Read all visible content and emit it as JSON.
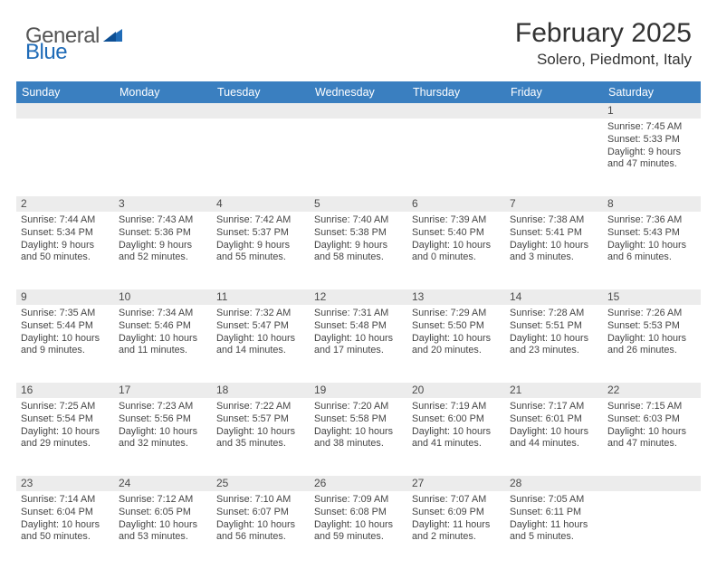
{
  "logo": {
    "text1": "General",
    "text2": "Blue"
  },
  "title": "February 2025",
  "location": "Solero, Piedmont, Italy",
  "colors": {
    "header_bg": "#3a7fc0",
    "header_text": "#ffffff",
    "daynum_bg": "#ececec",
    "body_text": "#454545",
    "logo_gray": "#555555",
    "logo_blue": "#1f6bb7"
  },
  "dow": [
    "Sunday",
    "Monday",
    "Tuesday",
    "Wednesday",
    "Thursday",
    "Friday",
    "Saturday"
  ],
  "weeks": [
    {
      "nums": [
        "",
        "",
        "",
        "",
        "",
        "",
        "1"
      ],
      "cells": [
        null,
        null,
        null,
        null,
        null,
        null,
        {
          "sr": "Sunrise: 7:45 AM",
          "ss": "Sunset: 5:33 PM",
          "d1": "Daylight: 9 hours",
          "d2": "and 47 minutes."
        }
      ]
    },
    {
      "nums": [
        "2",
        "3",
        "4",
        "5",
        "6",
        "7",
        "8"
      ],
      "cells": [
        {
          "sr": "Sunrise: 7:44 AM",
          "ss": "Sunset: 5:34 PM",
          "d1": "Daylight: 9 hours",
          "d2": "and 50 minutes."
        },
        {
          "sr": "Sunrise: 7:43 AM",
          "ss": "Sunset: 5:36 PM",
          "d1": "Daylight: 9 hours",
          "d2": "and 52 minutes."
        },
        {
          "sr": "Sunrise: 7:42 AM",
          "ss": "Sunset: 5:37 PM",
          "d1": "Daylight: 9 hours",
          "d2": "and 55 minutes."
        },
        {
          "sr": "Sunrise: 7:40 AM",
          "ss": "Sunset: 5:38 PM",
          "d1": "Daylight: 9 hours",
          "d2": "and 58 minutes."
        },
        {
          "sr": "Sunrise: 7:39 AM",
          "ss": "Sunset: 5:40 PM",
          "d1": "Daylight: 10 hours",
          "d2": "and 0 minutes."
        },
        {
          "sr": "Sunrise: 7:38 AM",
          "ss": "Sunset: 5:41 PM",
          "d1": "Daylight: 10 hours",
          "d2": "and 3 minutes."
        },
        {
          "sr": "Sunrise: 7:36 AM",
          "ss": "Sunset: 5:43 PM",
          "d1": "Daylight: 10 hours",
          "d2": "and 6 minutes."
        }
      ]
    },
    {
      "nums": [
        "9",
        "10",
        "11",
        "12",
        "13",
        "14",
        "15"
      ],
      "cells": [
        {
          "sr": "Sunrise: 7:35 AM",
          "ss": "Sunset: 5:44 PM",
          "d1": "Daylight: 10 hours",
          "d2": "and 9 minutes."
        },
        {
          "sr": "Sunrise: 7:34 AM",
          "ss": "Sunset: 5:46 PM",
          "d1": "Daylight: 10 hours",
          "d2": "and 11 minutes."
        },
        {
          "sr": "Sunrise: 7:32 AM",
          "ss": "Sunset: 5:47 PM",
          "d1": "Daylight: 10 hours",
          "d2": "and 14 minutes."
        },
        {
          "sr": "Sunrise: 7:31 AM",
          "ss": "Sunset: 5:48 PM",
          "d1": "Daylight: 10 hours",
          "d2": "and 17 minutes."
        },
        {
          "sr": "Sunrise: 7:29 AM",
          "ss": "Sunset: 5:50 PM",
          "d1": "Daylight: 10 hours",
          "d2": "and 20 minutes."
        },
        {
          "sr": "Sunrise: 7:28 AM",
          "ss": "Sunset: 5:51 PM",
          "d1": "Daylight: 10 hours",
          "d2": "and 23 minutes."
        },
        {
          "sr": "Sunrise: 7:26 AM",
          "ss": "Sunset: 5:53 PM",
          "d1": "Daylight: 10 hours",
          "d2": "and 26 minutes."
        }
      ]
    },
    {
      "nums": [
        "16",
        "17",
        "18",
        "19",
        "20",
        "21",
        "22"
      ],
      "cells": [
        {
          "sr": "Sunrise: 7:25 AM",
          "ss": "Sunset: 5:54 PM",
          "d1": "Daylight: 10 hours",
          "d2": "and 29 minutes."
        },
        {
          "sr": "Sunrise: 7:23 AM",
          "ss": "Sunset: 5:56 PM",
          "d1": "Daylight: 10 hours",
          "d2": "and 32 minutes."
        },
        {
          "sr": "Sunrise: 7:22 AM",
          "ss": "Sunset: 5:57 PM",
          "d1": "Daylight: 10 hours",
          "d2": "and 35 minutes."
        },
        {
          "sr": "Sunrise: 7:20 AM",
          "ss": "Sunset: 5:58 PM",
          "d1": "Daylight: 10 hours",
          "d2": "and 38 minutes."
        },
        {
          "sr": "Sunrise: 7:19 AM",
          "ss": "Sunset: 6:00 PM",
          "d1": "Daylight: 10 hours",
          "d2": "and 41 minutes."
        },
        {
          "sr": "Sunrise: 7:17 AM",
          "ss": "Sunset: 6:01 PM",
          "d1": "Daylight: 10 hours",
          "d2": "and 44 minutes."
        },
        {
          "sr": "Sunrise: 7:15 AM",
          "ss": "Sunset: 6:03 PM",
          "d1": "Daylight: 10 hours",
          "d2": "and 47 minutes."
        }
      ]
    },
    {
      "nums": [
        "23",
        "24",
        "25",
        "26",
        "27",
        "28",
        ""
      ],
      "cells": [
        {
          "sr": "Sunrise: 7:14 AM",
          "ss": "Sunset: 6:04 PM",
          "d1": "Daylight: 10 hours",
          "d2": "and 50 minutes."
        },
        {
          "sr": "Sunrise: 7:12 AM",
          "ss": "Sunset: 6:05 PM",
          "d1": "Daylight: 10 hours",
          "d2": "and 53 minutes."
        },
        {
          "sr": "Sunrise: 7:10 AM",
          "ss": "Sunset: 6:07 PM",
          "d1": "Daylight: 10 hours",
          "d2": "and 56 minutes."
        },
        {
          "sr": "Sunrise: 7:09 AM",
          "ss": "Sunset: 6:08 PM",
          "d1": "Daylight: 10 hours",
          "d2": "and 59 minutes."
        },
        {
          "sr": "Sunrise: 7:07 AM",
          "ss": "Sunset: 6:09 PM",
          "d1": "Daylight: 11 hours",
          "d2": "and 2 minutes."
        },
        {
          "sr": "Sunrise: 7:05 AM",
          "ss": "Sunset: 6:11 PM",
          "d1": "Daylight: 11 hours",
          "d2": "and 5 minutes."
        },
        null
      ]
    }
  ]
}
